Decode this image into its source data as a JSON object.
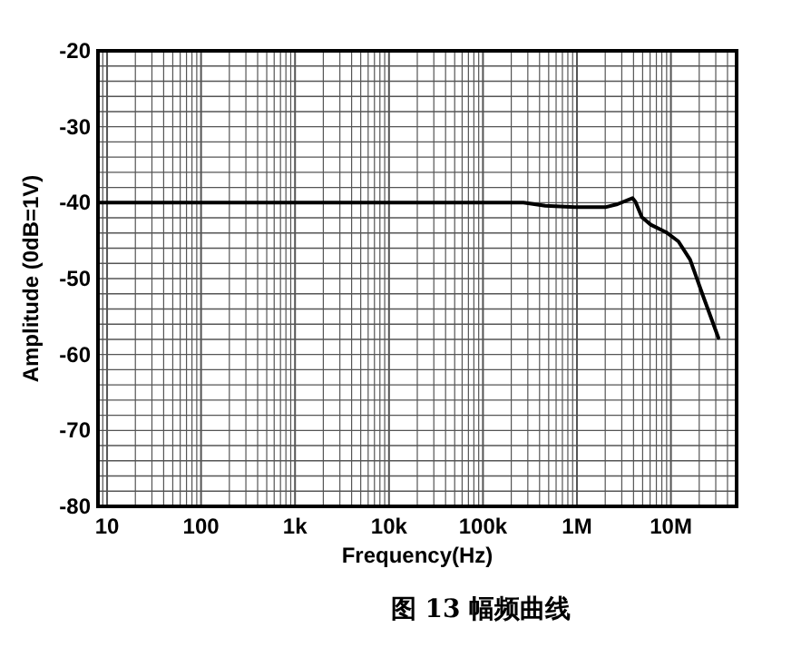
{
  "chart_data": {
    "type": "line",
    "xlabel": "Frequency(Hz)",
    "ylabel": "Amplitude (0dB=1V)",
    "annotations": [
      "图 13 幅频曲线"
    ],
    "log": "x",
    "grid": true,
    "xlim": [
      8,
      50000000
    ],
    "ylim": [
      -80,
      -20
    ],
    "xticks": [
      {
        "value": 10,
        "label": "10"
      },
      {
        "value": 100,
        "label": "100"
      },
      {
        "value": 1000,
        "label": "1k"
      },
      {
        "value": 10000,
        "label": "10k"
      },
      {
        "value": 100000,
        "label": "100k"
      },
      {
        "value": 1000000,
        "label": "1M"
      },
      {
        "value": 10000000,
        "label": "10M"
      }
    ],
    "yticks": [
      -80,
      -70,
      -60,
      -50,
      -40,
      -30,
      -20
    ],
    "series": [
      {
        "color": "#000000",
        "x": [
          8,
          270000,
          460000,
          950000,
          2000000,
          2700000,
          3900000,
          4200000,
          4900000,
          6100000,
          8900000,
          12000000,
          16000000,
          22000000,
          32000000
        ],
        "values": [
          -40,
          -40,
          -40.4,
          -40.6,
          -40.6,
          -40.2,
          -39.4,
          -39.9,
          -41.9,
          -42.9,
          -43.9,
          -45.1,
          -47.5,
          -52.3,
          -57.8
        ]
      }
    ]
  }
}
